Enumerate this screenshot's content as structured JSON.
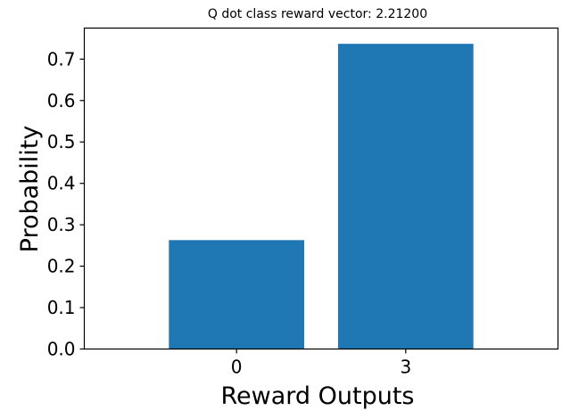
{
  "chart_data": {
    "type": "bar",
    "title": "Q dot class reward vector: 2.21200",
    "xlabel": "Reward Outputs",
    "ylabel": "Probability",
    "categories": [
      "0",
      "3"
    ],
    "values": [
      0.263,
      0.737
    ],
    "ylim": [
      0,
      0.775
    ],
    "yticks": [
      0.0,
      0.1,
      0.2,
      0.3,
      0.4,
      0.5,
      0.6,
      0.7
    ],
    "ytick_labels": [
      "0.0",
      "0.1",
      "0.2",
      "0.3",
      "0.4",
      "0.5",
      "0.6",
      "0.7"
    ],
    "bar_color": "#1f77b4",
    "grid": false,
    "legend": "none"
  }
}
